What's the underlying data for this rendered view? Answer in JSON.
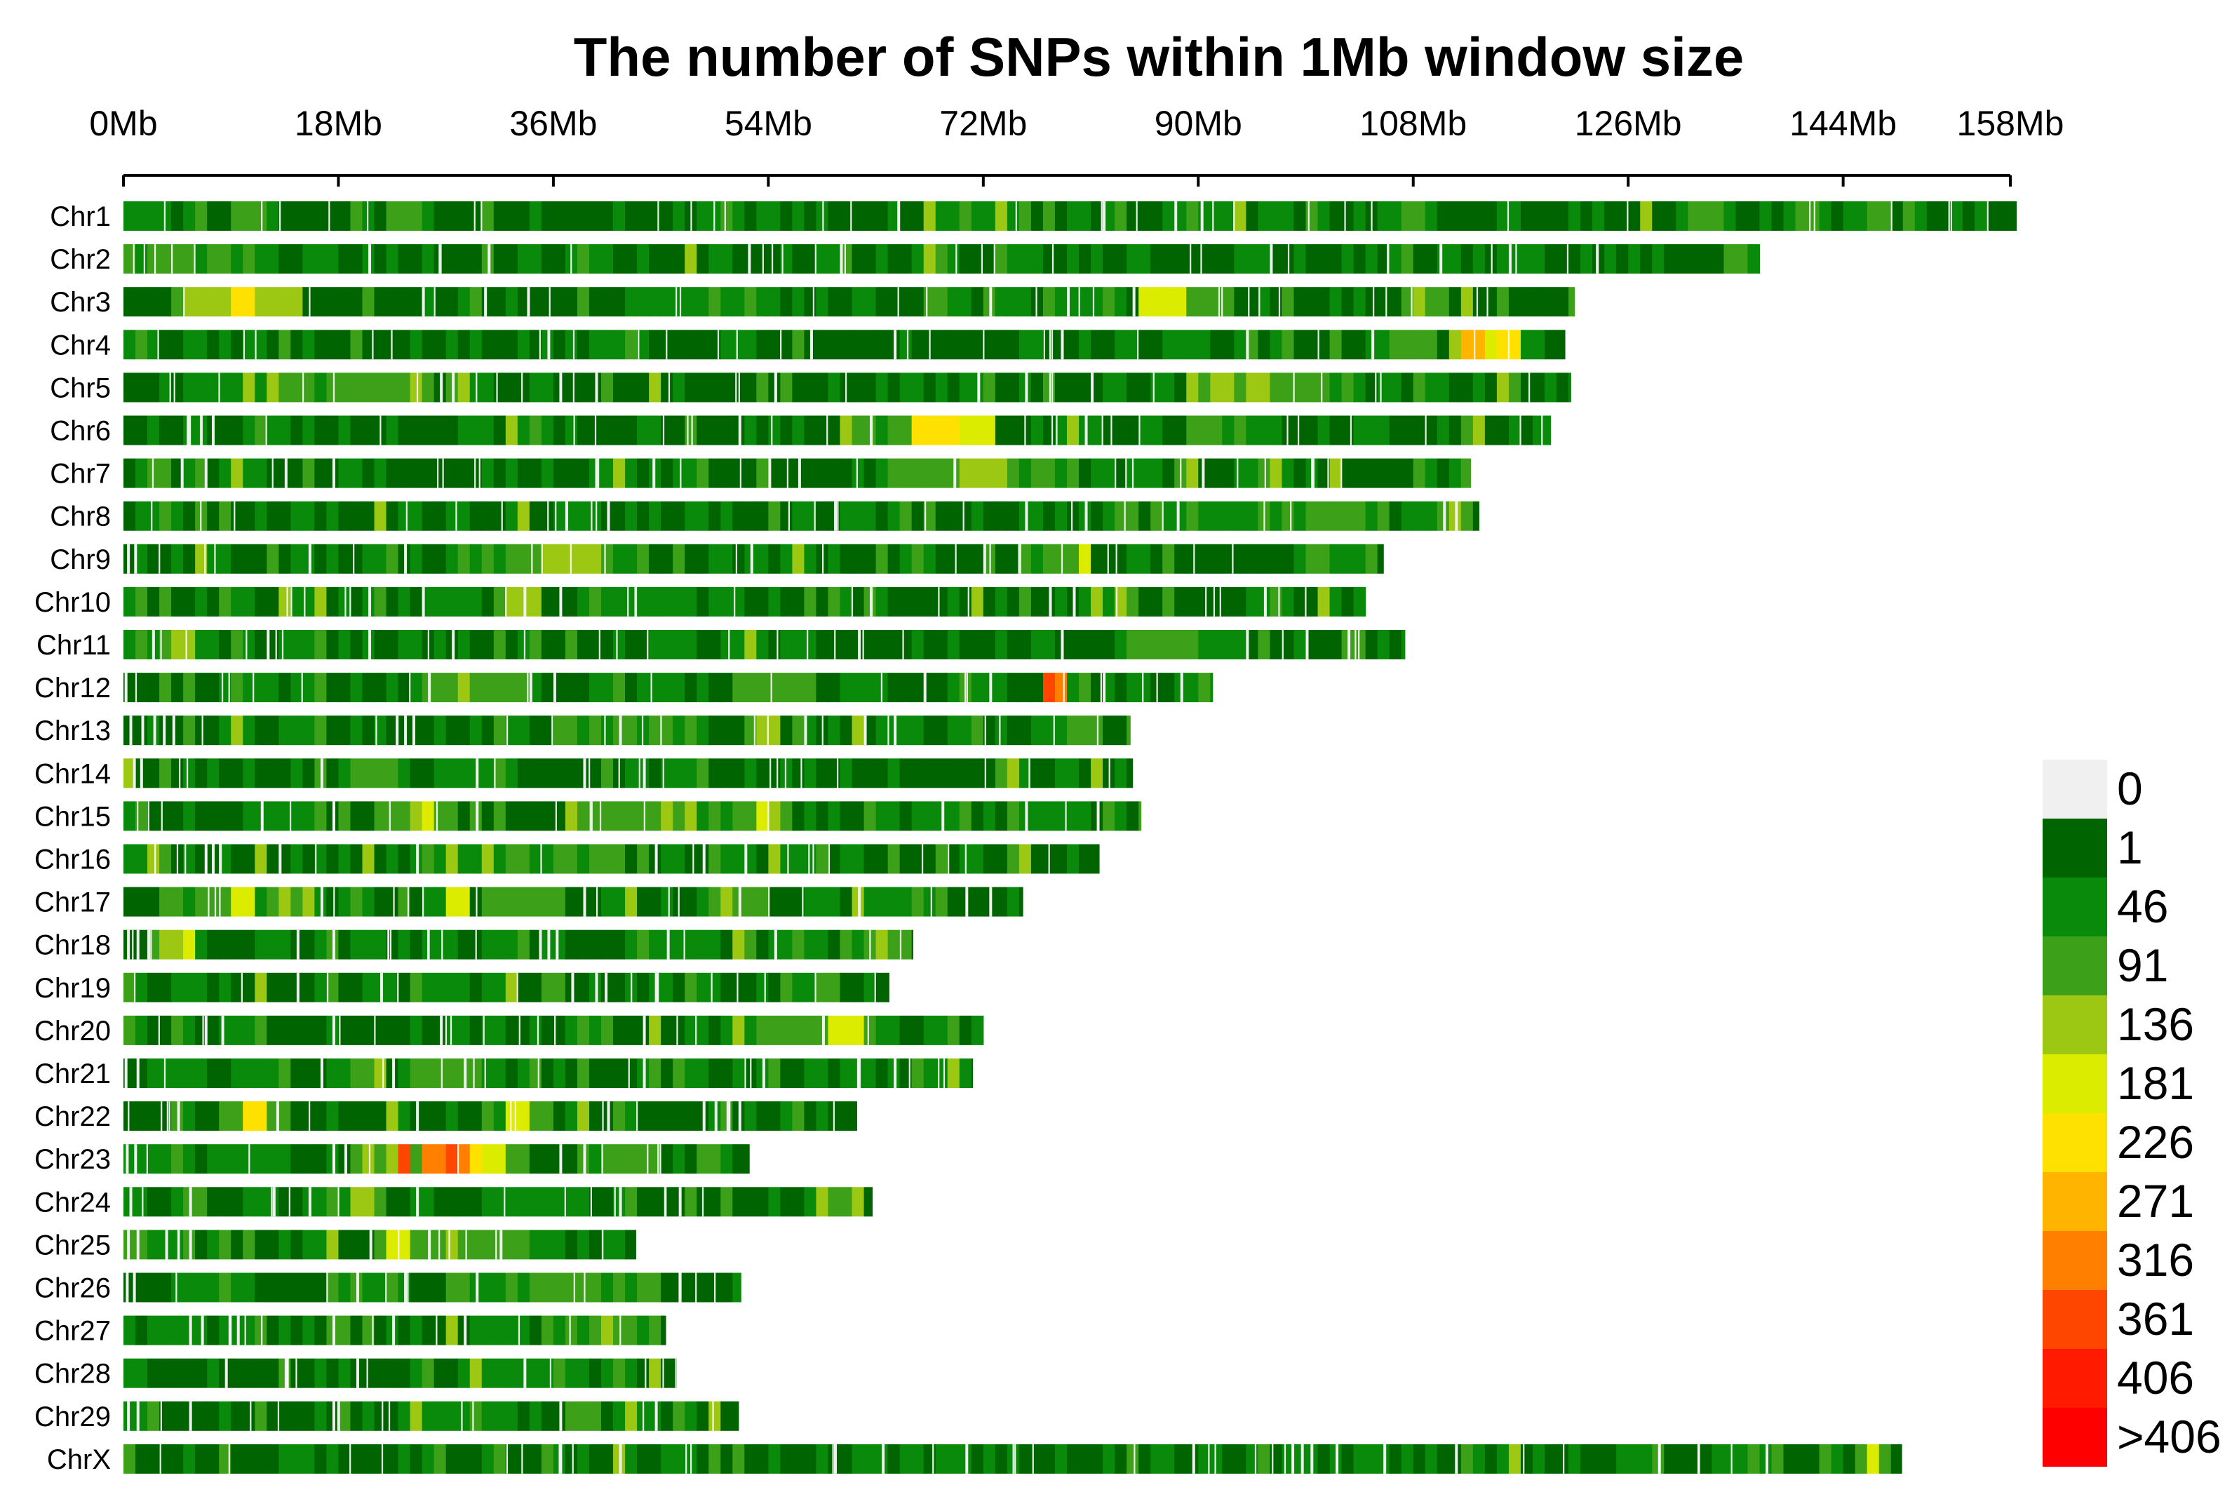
{
  "chart_data": {
    "type": "heatmap",
    "title": "The number of SNPs within 1Mb window size",
    "xlabel": "",
    "ylabel": "",
    "x_axis": {
      "min": 0,
      "max": 158,
      "unit": "Mb",
      "ticks": [
        0,
        18,
        36,
        54,
        72,
        90,
        108,
        126,
        144,
        158
      ],
      "tick_labels": [
        "0Mb",
        "18Mb",
        "36Mb",
        "54Mb",
        "72Mb",
        "90Mb",
        "108Mb",
        "126Mb",
        "144Mb",
        "158Mb"
      ]
    },
    "window_size_mb": 1,
    "legend": {
      "position": "right",
      "labels": [
        "0",
        "1",
        "46",
        "91",
        "136",
        "181",
        "226",
        "271",
        "316",
        "361",
        "406",
        ">406"
      ],
      "colors": [
        "#f0f0f0",
        "#006400",
        "#0a8a0a",
        "#3ca018",
        "#9cc814",
        "#dcec00",
        "#ffe100",
        "#ffb400",
        "#ff7f00",
        "#ff4600",
        "#ff1a00",
        "#ff0000"
      ]
    },
    "chromosomes": [
      {
        "name": "Chr1",
        "length_mb": 158.5,
        "hotspots": [
          [
            1,
            4,
            2
          ],
          [
            5,
            7,
            3
          ],
          [
            131,
            134,
            3
          ],
          [
            140,
            143,
            3
          ],
          [
            144,
            148,
            2
          ],
          [
            24,
            26,
            2
          ]
        ],
        "gaps": [
          64.8,
          82,
          88,
          90.2
        ]
      },
      {
        "name": "Chr2",
        "length_mb": 137.0,
        "hotspots": [
          [
            0,
            9,
            3
          ],
          [
            12,
            18,
            2
          ],
          [
            72,
            76,
            2
          ],
          [
            116,
            119,
            2
          ],
          [
            134,
            137,
            3
          ]
        ],
        "gaps": [
          20.5,
          30.5,
          52.3,
          60,
          96,
          110.2,
          116,
          123.3
        ]
      },
      {
        "name": "Chr3",
        "length_mb": 121.5,
        "hotspots": [
          [
            5,
            15,
            4
          ],
          [
            7,
            9,
            5
          ],
          [
            9,
            11,
            6
          ],
          [
            42,
            56,
            2
          ],
          [
            85,
            89,
            5
          ],
          [
            89,
            93,
            3
          ]
        ],
        "gaps": [
          25,
          30.2,
          33.8,
          72.5,
          79,
          84.5
        ]
      },
      {
        "name": "Chr4",
        "length_mb": 120.7,
        "hotspots": [
          [
            104,
            110,
            3
          ],
          [
            111,
            113,
            4
          ],
          [
            112,
            114,
            7
          ],
          [
            114,
            117,
            6
          ],
          [
            117,
            119,
            3
          ]
        ],
        "gaps": [
          35.5,
          57.5,
          64.5,
          78.5,
          94,
          104.5
        ]
      },
      {
        "name": "Chr5",
        "length_mb": 121.2,
        "hotspots": [
          [
            5,
            12,
            2
          ],
          [
            10,
            11,
            5
          ],
          [
            13,
            26,
            3
          ],
          [
            89,
            96,
            4
          ],
          [
            96,
            104,
            3
          ]
        ],
        "gaps": [
          26.5,
          27.5,
          36.5,
          39.5,
          54.5,
          71.5,
          75.5,
          81
        ]
      },
      {
        "name": "Chr6",
        "length_mb": 119.5,
        "hotspots": [
          [
            60,
            70,
            3
          ],
          [
            66,
            69,
            6
          ],
          [
            68,
            70,
            7
          ],
          [
            70,
            73,
            5
          ],
          [
            89,
            93,
            3
          ],
          [
            93,
            97,
            2
          ],
          [
            112,
            114,
            3
          ]
        ],
        "gaps": [
          5.3,
          6.4,
          7.4,
          51.5,
          62.5,
          80.5
        ]
      },
      {
        "name": "Chr7",
        "length_mb": 112.8,
        "hotspots": [
          [
            2,
            4,
            3
          ],
          [
            64,
            78,
            3
          ],
          [
            70,
            74,
            4
          ],
          [
            83,
            86,
            2
          ]
        ],
        "gaps": [
          4.8,
          6.8,
          13.5,
          17.5,
          39.5,
          44.3,
          54,
          56.5,
          69.5,
          90.3,
          99.5
        ]
      },
      {
        "name": "Chr8",
        "length_mb": 113.5,
        "hotspots": [
          [
            88,
            94,
            2
          ],
          [
            94,
            106,
            3
          ],
          [
            111,
            113,
            3
          ]
        ],
        "gaps": [
          37,
          40.5,
          59.5,
          75.5,
          80.5,
          88.2,
          110.5,
          111.5
        ]
      },
      {
        "name": "Chr9",
        "length_mb": 105.5,
        "hotspots": [
          [
            27,
            44,
            3
          ],
          [
            35,
            40,
            4
          ],
          [
            75,
            80,
            3
          ],
          [
            80,
            81,
            5
          ]
        ],
        "gaps": [
          0.3,
          0.9,
          15.5,
          23.5,
          52.5,
          72
        ]
      },
      {
        "name": "Chr10",
        "length_mb": 104.0,
        "hotspots": [
          [
            25,
            32,
            2
          ],
          [
            32,
            35,
            4
          ],
          [
            38,
            46,
            2
          ]
        ],
        "gaps": [
          20.5,
          25,
          33.5,
          36.5,
          62.5,
          77.5,
          79.5,
          95.5
        ]
      },
      {
        "name": "Chr11",
        "length_mb": 107.3,
        "hotspots": [
          [
            0,
            2,
            3
          ],
          [
            3,
            5,
            4
          ],
          [
            45,
            52,
            2
          ],
          [
            84,
            92,
            3
          ]
        ],
        "gaps": [
          2.4,
          12,
          20.5,
          27.5,
          61.5,
          78.5,
          94,
          99,
          102.5
        ]
      },
      {
        "name": "Chr12",
        "length_mb": 91.2,
        "hotspots": [
          [
            25,
            34,
            3
          ],
          [
            52,
            58,
            3
          ],
          [
            77,
            78,
            9
          ],
          [
            78,
            79,
            8
          ]
        ],
        "gaps": [
          0.1,
          25.5,
          34,
          36,
          67,
          72.5,
          82,
          88.5
        ]
      },
      {
        "name": "Chr13",
        "length_mb": 84.3,
        "hotspots": [
          [
            36,
            48,
            3
          ],
          [
            52,
            55,
            4
          ],
          [
            62,
            67,
            2
          ],
          [
            78,
            82,
            3
          ]
        ],
        "gaps": [
          0.5,
          1.5,
          2.5,
          3.3,
          4.1,
          22.8,
          23.5,
          24.2,
          41.5,
          57,
          62,
          64.5
        ]
      },
      {
        "name": "Chr14",
        "length_mb": 84.5,
        "hotspots": [
          [
            18,
            23,
            3
          ],
          [
            27,
            33,
            2
          ]
        ],
        "gaps": [
          0.8,
          1.4,
          16.5,
          29.5,
          38.5,
          43.5
        ]
      },
      {
        "name": "Chr15",
        "length_mb": 85.2,
        "hotspots": [
          [
            10,
            16,
            2
          ],
          [
            22,
            28,
            3
          ],
          [
            24,
            26,
            5
          ],
          [
            37,
            56,
            3
          ],
          [
            45,
            48,
            4
          ],
          [
            53,
            55,
            5
          ],
          [
            67,
            71,
            2
          ]
        ],
        "gaps": [
          11.5,
          17.5,
          29.5,
          68.5,
          75.5,
          81.5
        ]
      },
      {
        "name": "Chr16",
        "length_mb": 81.7,
        "hotspots": [
          [
            25,
            33,
            2
          ],
          [
            32,
            42,
            3
          ]
        ],
        "gaps": [
          6.8,
          7.4,
          8,
          13,
          24.5,
          44.5,
          48.5,
          52
        ]
      },
      {
        "name": "Chr17",
        "length_mb": 75.3,
        "hotspots": [
          [
            3,
            16,
            3
          ],
          [
            9,
            11,
            5
          ],
          [
            14,
            16,
            4
          ],
          [
            27,
            29,
            5
          ],
          [
            31,
            37,
            3
          ],
          [
            48,
            54,
            3
          ],
          [
            63,
            70,
            2
          ]
        ],
        "gaps": [
          16.5,
          38.5,
          51.5,
          61.5,
          70.5,
          72.5
        ]
      },
      {
        "name": "Chr18",
        "length_mb": 66.1,
        "hotspots": [
          [
            4,
            6,
            5
          ],
          [
            60,
            66,
            3
          ]
        ],
        "gaps": [
          0.3,
          1.1,
          2,
          14.5,
          17.5,
          34.8,
          35.5,
          36.2,
          45.5,
          54.5
        ]
      },
      {
        "name": "Chr19",
        "length_mb": 64.1,
        "hotspots": [
          [
            0,
            2,
            3
          ],
          [
            35,
            37,
            3
          ],
          [
            57,
            59,
            3
          ]
        ],
        "gaps": [
          14.5,
          21.5,
          37.5,
          39.5,
          40.3,
          44.5
        ]
      },
      {
        "name": "Chr20",
        "length_mb": 72.0,
        "hotspots": [
          [
            53,
            63,
            3
          ],
          [
            59,
            62,
            5
          ]
        ],
        "gaps": [
          6.8,
          8.2,
          17.5,
          26.5,
          43.5,
          58.5
        ]
      },
      {
        "name": "Chr21",
        "length_mb": 71.1,
        "hotspots": [
          [
            19,
            22,
            4
          ],
          [
            23,
            29,
            3
          ]
        ],
        "gaps": [
          0.1,
          1.1,
          16.5,
          22.5,
          28.5,
          43.5,
          53.5,
          61.5,
          64.5
        ]
      },
      {
        "name": "Chr22",
        "length_mb": 61.4,
        "hotspots": [
          [
            8,
            14,
            3
          ],
          [
            10,
            12,
            6
          ],
          [
            30,
            36,
            3
          ],
          [
            32,
            34,
            5
          ]
        ],
        "gaps": [
          4.5,
          12.8,
          24.5,
          40.5,
          48.5,
          49.5,
          50.5,
          51.5
        ]
      },
      {
        "name": "Chr23",
        "length_mb": 52.4,
        "hotspots": [
          [
            7,
            14,
            2
          ],
          [
            19,
            34,
            3
          ],
          [
            20,
            24,
            4
          ],
          [
            23,
            24,
            9
          ],
          [
            25,
            28,
            8
          ],
          [
            27,
            29,
            9
          ],
          [
            29,
            32,
            6
          ],
          [
            39,
            45,
            3
          ]
        ],
        "gaps": [
          0.2,
          0.9,
          17.5,
          18.5,
          36.5,
          38.5
        ]
      },
      {
        "name": "Chr24",
        "length_mb": 62.7,
        "hotspots": [
          [
            17,
            22,
            3
          ],
          [
            19,
            21,
            4
          ],
          [
            32,
            38,
            2
          ],
          [
            59,
            62,
            3
          ]
        ],
        "gaps": [
          0.5,
          5.5,
          12.5,
          15.5,
          24.5,
          41.5,
          46.5
        ]
      },
      {
        "name": "Chr25",
        "length_mb": 42.9,
        "hotspots": [
          [
            21,
            33,
            3
          ],
          [
            22,
            24,
            5
          ],
          [
            27,
            30,
            4
          ]
        ],
        "gaps": [
          0.3,
          1.1,
          3.5,
          5.5,
          20.6,
          25.5,
          31.5
        ]
      },
      {
        "name": "Chr26",
        "length_mb": 51.7,
        "hotspots": [
          [
            32,
            45,
            3
          ],
          [
            37,
            44,
            2
          ]
        ],
        "gaps": [
          0.2,
          0.8,
          19.5,
          23.5,
          29.5,
          46.5
        ]
      },
      {
        "name": "Chr27",
        "length_mb": 45.4,
        "hotspots": [
          [
            37,
            45,
            3
          ]
        ],
        "gaps": [
          5.5,
          6.5,
          8.8,
          9.5,
          17.5,
          22.5,
          28.5
        ]
      },
      {
        "name": "Chr28",
        "length_mb": 46.3,
        "hotspots": [
          [
            30,
            36,
            2
          ]
        ],
        "gaps": [
          8.5,
          13.5,
          19.5,
          33.5
        ]
      },
      {
        "name": "Chr29",
        "length_mb": 51.5,
        "hotspots": [
          [
            25,
            33,
            2
          ],
          [
            37,
            40,
            3
          ]
        ],
        "gaps": [
          0.3,
          1.1,
          5.5,
          17.5,
          17.9,
          36.5,
          44.5
        ]
      },
      {
        "name": "ChrX",
        "length_mb": 148.9,
        "hotspots": [
          [
            145,
            148,
            3
          ],
          [
            146,
            147,
            5
          ]
        ],
        "gaps": [
          36.5,
          41.5,
          59.5,
          63.5,
          70.5,
          89.5,
          97.8,
          98.6,
          99.4,
          101.5,
          105.5,
          111.5,
          128.5,
          137.5
        ]
      }
    ]
  }
}
